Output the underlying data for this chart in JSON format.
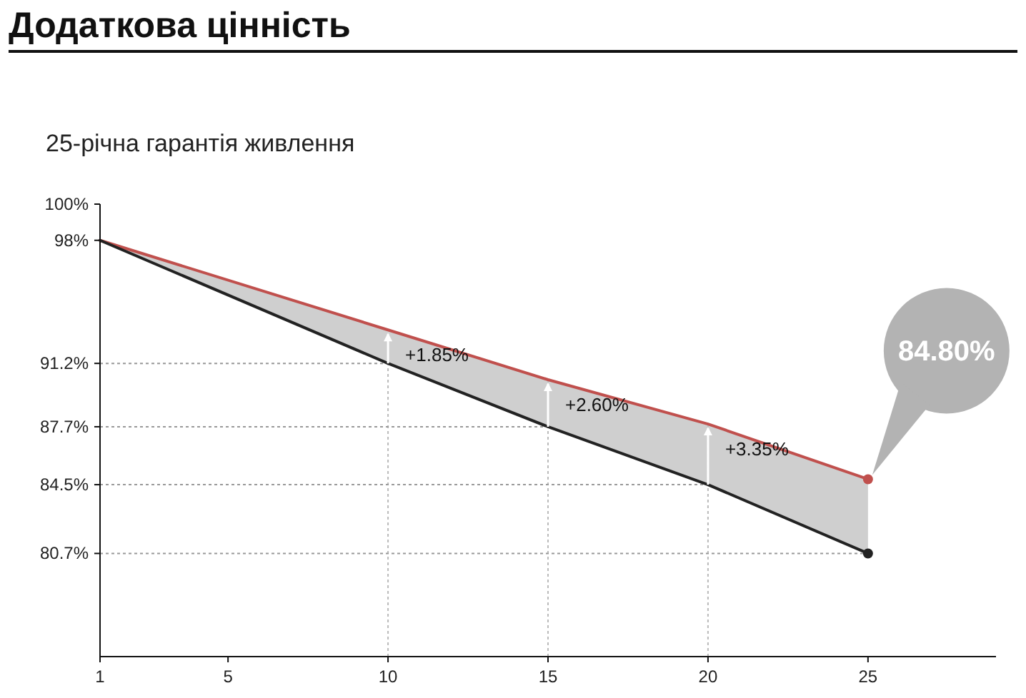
{
  "chart_data": {
    "type": "line",
    "title": "Додаткова цінність",
    "subtitle": "25-річна гарантія живлення",
    "xlim": [
      1,
      29
    ],
    "xticks": [
      1,
      5,
      10,
      15,
      20,
      25
    ],
    "ylim": [
      75,
      100
    ],
    "yticks": [
      {
        "value": 100,
        "label": "100%"
      },
      {
        "value": 98,
        "label": "98%"
      },
      {
        "value": 91.2,
        "label": "91.2%"
      },
      {
        "value": 87.7,
        "label": "87.7%"
      },
      {
        "value": 84.5,
        "label": "84.5%"
      },
      {
        "value": 80.7,
        "label": "80.7%"
      }
    ],
    "line_style": "solid",
    "ref_lines": [
      {
        "axis": "x",
        "value": 10,
        "line_style": "dotted",
        "color": "#bbbbbb"
      },
      {
        "axis": "x",
        "value": 15,
        "line_style": "dotted",
        "color": "#bbbbbb"
      },
      {
        "axis": "x",
        "value": 20,
        "line_style": "dotted",
        "color": "#bbbbbb"
      },
      {
        "axis": "y",
        "value": 91.2,
        "line_style": "dotted",
        "color": "#999999"
      },
      {
        "axis": "y",
        "value": 87.7,
        "line_style": "dotted",
        "color": "#999999"
      },
      {
        "axis": "y",
        "value": 84.5,
        "line_style": "dotted",
        "color": "#999999"
      },
      {
        "axis": "y",
        "value": 80.7,
        "line_style": "dotted",
        "color": "#999999"
      }
    ],
    "series": [
      {
        "color": "#c0504d",
        "x": [
          1,
          10,
          15,
          20,
          25
        ],
        "values": [
          98,
          93.05,
          90.3,
          87.85,
          84.8
        ]
      },
      {
        "color": "#222222",
        "x": [
          1,
          10,
          15,
          20,
          25
        ],
        "values": [
          98,
          91.2,
          87.7,
          84.5,
          80.7
        ],
        "lower": [
          98,
          91.2,
          87.7,
          84.5,
          80.7
        ],
        "upper": [
          98,
          93.05,
          90.3,
          87.85,
          84.8
        ]
      }
    ],
    "annotations": [
      {
        "text": "+1.85%",
        "x": 10,
        "y": 93.05
      },
      {
        "text": "+2.60%",
        "x": 15,
        "y": 90.3
      },
      {
        "text": "+3.35%",
        "x": 20,
        "y": 87.85
      },
      "84.80%"
    ]
  }
}
